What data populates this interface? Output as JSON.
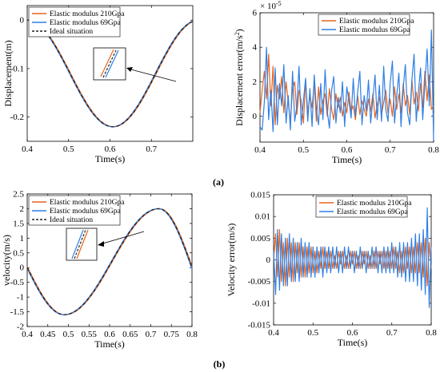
{
  "captions": {
    "a": "(a)",
    "b": "(b)"
  },
  "colors": {
    "orange": "#E8641B",
    "blue": "#2F7FE6",
    "ideal": "#222222",
    "axis": "#000000"
  },
  "chart_data": [
    {
      "id": "disp",
      "type": "line",
      "xlabel": "Time(s)",
      "ylabel": "Displacement(m)",
      "xlim": [
        0.4,
        0.8
      ],
      "ylim": [
        -0.25,
        0.03
      ],
      "xticks": [
        0.4,
        0.5,
        0.6,
        0.7
      ],
      "xtick_labels": [
        "0.4",
        "0.5",
        "0.6",
        "0.7"
      ],
      "yticks": [
        0,
        -0.1,
        -0.2
      ],
      "ytick_labels": [
        "0",
        "-0.1",
        "-0.2"
      ],
      "legend": [
        "Elastic modulus 210Gpa",
        "Elastic modulus 69Gpa",
        "Ideal situation"
      ],
      "legend_position": "top-left",
      "inset": true,
      "curve": {
        "amplitude": 0.11,
        "center": -0.11,
        "min_x": 0.607,
        "max_x": 0.4,
        "half_period": 0.2
      }
    },
    {
      "id": "disp_err",
      "type": "line",
      "xlabel": "Time(s)",
      "ylabel": "Displacement error(m/s²)",
      "ylabel_parts": [
        "Displacement error(m/s",
        "2",
        ")"
      ],
      "exponent_label": "× 10",
      "exponent_power": "-5",
      "xlim": [
        0.4,
        0.8
      ],
      "ylim": [
        -1.5,
        6
      ],
      "xticks": [
        0.4,
        0.5,
        0.6,
        0.7,
        0.8
      ],
      "xtick_labels": [
        "0.4",
        "0.5",
        "0.6",
        "0.7",
        "0.8"
      ],
      "yticks": [
        0,
        2,
        4,
        6
      ],
      "ytick_labels": [
        "0",
        "2",
        "4",
        "6"
      ],
      "legend": [
        "Elastic modulus 210Gpa",
        "Elastic modulus 69Gpa"
      ],
      "legend_position": "top-right",
      "series": [
        {
          "name": "Elastic modulus 210Gpa",
          "color": "orange",
          "x": [
            0.4,
            0.405,
            0.41,
            0.415,
            0.42,
            0.425,
            0.43,
            0.435,
            0.44,
            0.445,
            0.45,
            0.455,
            0.46,
            0.465,
            0.47,
            0.475,
            0.48,
            0.485,
            0.49,
            0.495,
            0.5,
            0.505,
            0.51,
            0.515,
            0.52,
            0.525,
            0.53,
            0.535,
            0.54,
            0.545,
            0.55,
            0.555,
            0.56,
            0.565,
            0.57,
            0.575,
            0.58,
            0.585,
            0.59,
            0.595,
            0.6,
            0.605,
            0.61,
            0.615,
            0.62,
            0.625,
            0.63,
            0.635,
            0.64,
            0.645,
            0.65,
            0.655,
            0.66,
            0.665,
            0.67,
            0.675,
            0.68,
            0.685,
            0.69,
            0.695,
            0.7,
            0.705,
            0.71,
            0.715,
            0.72,
            0.725,
            0.73,
            0.735,
            0.74,
            0.745,
            0.75,
            0.755,
            0.76,
            0.765,
            0.77,
            0.775,
            0.78,
            0.785,
            0.79,
            0.795,
            0.8
          ],
          "values": [
            0.2,
            1.5,
            2.6,
            1.0,
            3.6,
            0.6,
            2.9,
            -0.5,
            1.8,
            1.0,
            2.3,
            0.2,
            2.0,
            0.8,
            -0.3,
            1.6,
            2.0,
            0.1,
            1.5,
            0.9,
            -0.4,
            2.1,
            0.2,
            1.2,
            0.5,
            2.0,
            -0.3,
            1.7,
            0.1,
            0.9,
            1.3,
            0.0,
            1.6,
            0.4,
            -0.2,
            1.3,
            0.5,
            1.1,
            0.0,
            0.8,
            0.2,
            1.4,
            0.3,
            0.6,
            -0.2,
            1.2,
            0.1,
            0.9,
            0.4,
            0.0,
            1.0,
            0.3,
            1.3,
            -0.1,
            0.7,
            1.1,
            0.1,
            0.8,
            1.5,
            0.2,
            1.0,
            0.0,
            1.7,
            0.4,
            1.3,
            0.2,
            1.9,
            0.6,
            1.2,
            0.1,
            2.1,
            0.7,
            1.4,
            0.3,
            1.9,
            0.5,
            2.6,
            0.9,
            2.4,
            0.4,
            0.6
          ]
        },
        {
          "name": "Elastic modulus 69Gpa",
          "color": "blue",
          "x": [
            0.4,
            0.405,
            0.41,
            0.415,
            0.42,
            0.425,
            0.43,
            0.435,
            0.44,
            0.445,
            0.45,
            0.455,
            0.46,
            0.465,
            0.47,
            0.475,
            0.48,
            0.485,
            0.49,
            0.495,
            0.5,
            0.505,
            0.51,
            0.515,
            0.52,
            0.525,
            0.53,
            0.535,
            0.54,
            0.545,
            0.55,
            0.555,
            0.56,
            0.565,
            0.57,
            0.575,
            0.58,
            0.585,
            0.59,
            0.595,
            0.6,
            0.605,
            0.61,
            0.615,
            0.62,
            0.625,
            0.63,
            0.635,
            0.64,
            0.645,
            0.65,
            0.655,
            0.66,
            0.665,
            0.67,
            0.675,
            0.68,
            0.685,
            0.69,
            0.695,
            0.7,
            0.705,
            0.71,
            0.715,
            0.72,
            0.725,
            0.73,
            0.735,
            0.74,
            0.745,
            0.75,
            0.755,
            0.76,
            0.765,
            0.77,
            0.775,
            0.78,
            0.785,
            0.79,
            0.795,
            0.8
          ],
          "values": [
            -0.6,
            -0.8,
            0.8,
            4.0,
            -0.2,
            1.5,
            -0.9,
            2.8,
            -0.5,
            1.9,
            0.6,
            3.0,
            -0.4,
            1.2,
            -0.8,
            2.6,
            -0.3,
            0.6,
            2.9,
            -0.5,
            0.9,
            2.2,
            -0.3,
            1.6,
            -0.6,
            2.4,
            0.4,
            -0.5,
            1.9,
            -0.2,
            2.7,
            0.3,
            -0.7,
            1.5,
            2.3,
            -0.4,
            1.1,
            0.2,
            2.0,
            -0.6,
            1.7,
            0.9,
            -0.1,
            2.2,
            0.0,
            1.4,
            2.6,
            -0.5,
            1.2,
            0.3,
            2.1,
            -0.4,
            1.0,
            2.4,
            -0.2,
            1.8,
            -0.3,
            2.9,
            0.4,
            -0.3,
            1.9,
            3.2,
            -0.4,
            1.2,
            2.5,
            -0.6,
            1.6,
            3.0,
            0.2,
            -0.5,
            2.1,
            3.6,
            -0.3,
            1.4,
            2.8,
            -0.2,
            1.9,
            3.9,
            0.6,
            5.0,
            -1.4
          ]
        }
      ]
    },
    {
      "id": "vel",
      "type": "line",
      "xlabel": "Time(s)",
      "ylabel": "velocity(m/s)",
      "xlim": [
        0.4,
        0.8
      ],
      "ylim": [
        -2,
        2.5
      ],
      "xticks": [
        0.4,
        0.45,
        0.5,
        0.55,
        0.6,
        0.65,
        0.7,
        0.75,
        0.8
      ],
      "xtick_labels": [
        "0.4",
        "0.45",
        "0.5",
        "0.55",
        "0.6",
        "0.65",
        "0.7",
        "0.75",
        "0.8"
      ],
      "yticks": [
        -2,
        -1.5,
        -1,
        -0.5,
        0,
        0.5,
        1,
        1.5,
        2,
        2.5
      ],
      "ytick_labels": [
        "-2",
        "-1.5",
        "-1",
        "-0.5",
        "0",
        "0.5",
        "1",
        "1.5",
        "2",
        "2.5"
      ],
      "legend": [
        "Elastic modulus 210Gpa",
        "Elastic modulus 69Gpa",
        "Ideal situation"
      ],
      "legend_position": "top-left",
      "inset": true,
      "curve": {
        "min_value": -1.6,
        "min_x": 0.49,
        "max_value": 2.0,
        "max_x": 0.72
      }
    },
    {
      "id": "vel_err",
      "type": "line",
      "xlabel": "Time(s)",
      "ylabel": "Velocity error(m/s)",
      "xlim": [
        0.4,
        0.8
      ],
      "ylim": [
        -0.015,
        0.015
      ],
      "xticks": [
        0.4,
        0.5,
        0.6,
        0.7,
        0.8
      ],
      "xtick_labels": [
        "0.4",
        "0.5",
        "0.6",
        "0.7",
        "0.8"
      ],
      "yticks": [
        -0.015,
        -0.01,
        -0.005,
        0,
        0.005,
        0.01,
        0.015
      ],
      "ytick_labels": [
        "-0.015",
        "-0.01",
        "-0.005",
        "0",
        "0.005",
        "0.01",
        "0.015"
      ],
      "legend": [
        "Elastic modulus 210Gpa",
        "Elastic modulus 69Gpa"
      ],
      "legend_position": "top-right",
      "series": [
        {
          "name": "Elastic modulus 210Gpa",
          "color": "orange",
          "x": [
            0.4,
            0.405,
            0.41,
            0.415,
            0.42,
            0.425,
            0.43,
            0.435,
            0.44,
            0.445,
            0.45,
            0.455,
            0.46,
            0.465,
            0.47,
            0.475,
            0.48,
            0.485,
            0.49,
            0.495,
            0.5,
            0.505,
            0.51,
            0.515,
            0.52,
            0.525,
            0.53,
            0.535,
            0.54,
            0.545,
            0.55,
            0.555,
            0.56,
            0.565,
            0.57,
            0.575,
            0.58,
            0.585,
            0.59,
            0.595,
            0.6,
            0.605,
            0.61,
            0.615,
            0.62,
            0.625,
            0.63,
            0.635,
            0.64,
            0.645,
            0.65,
            0.655,
            0.66,
            0.665,
            0.67,
            0.675,
            0.68,
            0.685,
            0.69,
            0.695,
            0.7,
            0.705,
            0.71,
            0.715,
            0.72,
            0.725,
            0.73,
            0.735,
            0.74,
            0.745,
            0.75,
            0.755,
            0.76,
            0.765,
            0.77,
            0.775,
            0.78,
            0.785,
            0.79,
            0.795,
            0.8
          ],
          "values": [
            0.0,
            0.006,
            -0.004,
            0.007,
            -0.005,
            0.004,
            -0.006,
            0.005,
            -0.004,
            0.004,
            -0.005,
            0.004,
            -0.003,
            0.004,
            -0.004,
            0.003,
            -0.004,
            0.003,
            -0.003,
            0.003,
            -0.003,
            0.002,
            -0.003,
            0.002,
            -0.002,
            0.003,
            -0.002,
            0.002,
            -0.002,
            0.002,
            -0.002,
            0.001,
            -0.002,
            0.002,
            -0.001,
            0.002,
            -0.002,
            0.001,
            -0.002,
            0.002,
            -0.001,
            0.002,
            -0.002,
            0.001,
            -0.002,
            0.002,
            -0.001,
            0.002,
            -0.002,
            0.001,
            -0.002,
            0.002,
            -0.002,
            0.002,
            -0.001,
            0.002,
            -0.002,
            0.002,
            -0.002,
            0.002,
            -0.002,
            0.003,
            -0.002,
            0.002,
            -0.003,
            0.002,
            -0.003,
            0.003,
            -0.002,
            0.003,
            -0.003,
            0.003,
            -0.003,
            0.004,
            -0.003,
            0.004,
            -0.004,
            0.005,
            -0.006,
            0.004,
            -0.002
          ]
        },
        {
          "name": "Elastic modulus 69Gpa",
          "color": "blue",
          "x": [
            0.4,
            0.405,
            0.41,
            0.415,
            0.42,
            0.425,
            0.43,
            0.435,
            0.44,
            0.445,
            0.45,
            0.455,
            0.46,
            0.465,
            0.47,
            0.475,
            0.48,
            0.485,
            0.49,
            0.495,
            0.5,
            0.505,
            0.51,
            0.515,
            0.52,
            0.525,
            0.53,
            0.535,
            0.54,
            0.545,
            0.55,
            0.555,
            0.56,
            0.565,
            0.57,
            0.575,
            0.58,
            0.585,
            0.59,
            0.595,
            0.6,
            0.605,
            0.61,
            0.615,
            0.62,
            0.625,
            0.63,
            0.635,
            0.64,
            0.645,
            0.65,
            0.655,
            0.66,
            0.665,
            0.67,
            0.675,
            0.68,
            0.685,
            0.69,
            0.695,
            0.7,
            0.705,
            0.71,
            0.715,
            0.72,
            0.725,
            0.73,
            0.735,
            0.74,
            0.745,
            0.75,
            0.755,
            0.76,
            0.765,
            0.77,
            0.775,
            0.78,
            0.785,
            0.79,
            0.795,
            0.8
          ],
          "values": [
            0.002,
            -0.008,
            0.007,
            -0.007,
            0.006,
            -0.006,
            0.005,
            -0.006,
            0.006,
            -0.005,
            0.005,
            -0.005,
            0.004,
            -0.005,
            0.005,
            -0.004,
            0.004,
            -0.004,
            0.004,
            -0.004,
            0.003,
            -0.004,
            0.003,
            -0.003,
            0.003,
            -0.004,
            0.003,
            -0.003,
            0.003,
            -0.003,
            0.003,
            -0.002,
            0.003,
            -0.003,
            0.002,
            -0.003,
            0.003,
            -0.002,
            0.003,
            -0.002,
            0.002,
            -0.003,
            0.002,
            -0.002,
            0.003,
            -0.002,
            0.002,
            -0.003,
            0.002,
            -0.002,
            0.003,
            -0.002,
            0.003,
            -0.003,
            0.002,
            -0.003,
            0.003,
            -0.003,
            0.003,
            -0.003,
            0.004,
            -0.003,
            0.003,
            -0.004,
            0.004,
            -0.004,
            0.004,
            -0.005,
            0.004,
            -0.005,
            0.005,
            -0.005,
            0.006,
            -0.006,
            0.006,
            -0.007,
            0.007,
            -0.008,
            0.012,
            -0.011,
            0.003
          ]
        }
      ]
    }
  ]
}
